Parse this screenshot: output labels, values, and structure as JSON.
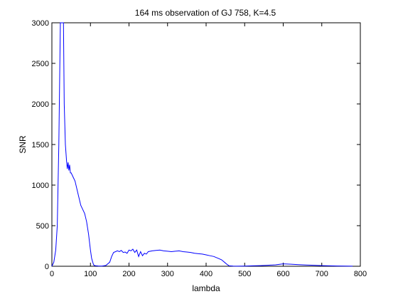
{
  "chart_data": {
    "type": "line",
    "title": "164 ms observation of GJ 758, K=4.5",
    "xlabel": "lambda",
    "ylabel": "SNR",
    "xlim": [
      0,
      800
    ],
    "ylim": [
      0,
      3000
    ],
    "xticks": [
      "0",
      "100",
      "200",
      "300",
      "400",
      "500",
      "600",
      "700",
      "800"
    ],
    "yticks": [
      "0",
      "500",
      "1000",
      "1500",
      "2000",
      "2500",
      "3000"
    ],
    "grid": false,
    "series": [
      {
        "color": "#0000ff",
        "x": [
          0,
          5,
          10,
          14,
          18,
          22,
          25,
          28,
          30,
          32,
          35,
          38,
          40,
          42,
          44,
          46,
          48,
          50,
          55,
          60,
          65,
          70,
          75,
          80,
          85,
          90,
          95,
          100,
          103,
          106,
          108,
          110,
          115,
          120,
          130,
          140,
          150,
          155,
          160,
          165,
          170,
          175,
          180,
          185,
          190,
          195,
          200,
          205,
          210,
          215,
          220,
          225,
          230,
          235,
          240,
          245,
          250,
          260,
          270,
          280,
          290,
          300,
          310,
          320,
          330,
          340,
          350,
          360,
          370,
          380,
          390,
          400,
          410,
          420,
          430,
          440,
          450,
          455,
          460,
          470,
          480,
          500,
          520,
          540,
          560,
          580,
          600,
          620,
          640,
          660,
          680,
          700,
          720,
          740,
          760,
          780
        ],
        "y": [
          0,
          50,
          200,
          500,
          1500,
          3000,
          3000,
          3000,
          3000,
          2000,
          1500,
          1300,
          1200,
          1280,
          1180,
          1250,
          1150,
          1150,
          1100,
          1050,
          950,
          850,
          750,
          700,
          650,
          550,
          400,
          200,
          100,
          50,
          20,
          10,
          5,
          3,
          2,
          10,
          50,
          120,
          170,
          180,
          190,
          180,
          195,
          170,
          175,
          160,
          200,
          190,
          210,
          170,
          200,
          120,
          180,
          130,
          160,
          150,
          180,
          190,
          195,
          200,
          190,
          185,
          180,
          185,
          190,
          180,
          175,
          170,
          160,
          155,
          150,
          140,
          130,
          120,
          100,
          80,
          40,
          20,
          5,
          2,
          1,
          2,
          5,
          8,
          12,
          18,
          30,
          25,
          20,
          15,
          12,
          8,
          5,
          3,
          2,
          1
        ]
      }
    ]
  }
}
